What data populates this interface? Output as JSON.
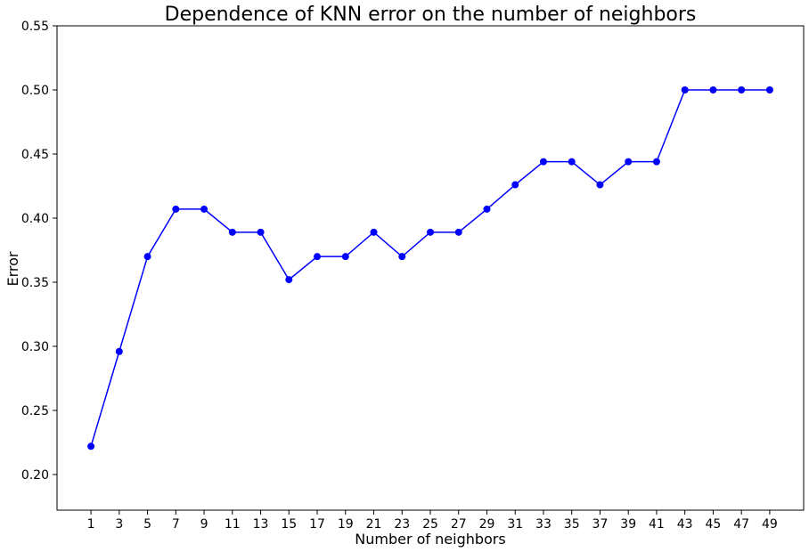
{
  "chart_data": {
    "type": "line",
    "title": "Dependence of KNN error on the number of neighbors",
    "xlabel": "Number of neighbors",
    "ylabel": "Error",
    "x": [
      1,
      3,
      5,
      7,
      9,
      11,
      13,
      15,
      17,
      19,
      21,
      23,
      25,
      27,
      29,
      31,
      33,
      35,
      37,
      39,
      41,
      43,
      45,
      47,
      49
    ],
    "series": [
      {
        "values": [
          0.222,
          0.296,
          0.37,
          0.407,
          0.407,
          0.389,
          0.389,
          0.352,
          0.37,
          0.37,
          0.389,
          0.37,
          0.389,
          0.389,
          0.407,
          0.426,
          0.444,
          0.444,
          0.426,
          0.444,
          0.444,
          0.5,
          0.5,
          0.5,
          0.5
        ],
        "color": "#0000ff",
        "marker": "circle"
      }
    ],
    "xticks": [
      "1",
      "3",
      "5",
      "7",
      "9",
      "11",
      "13",
      "15",
      "17",
      "19",
      "21",
      "23",
      "25",
      "27",
      "29",
      "31",
      "33",
      "35",
      "37",
      "39",
      "41",
      "43",
      "45",
      "47",
      "49"
    ],
    "yticks": [
      "0.20",
      "0.25",
      "0.30",
      "0.35",
      "0.40",
      "0.45",
      "0.50",
      "0.55"
    ],
    "xlim": [
      -1.4,
      51.4
    ],
    "ylim": [
      0.1722,
      0.55
    ],
    "grid": false,
    "legend": "none"
  }
}
